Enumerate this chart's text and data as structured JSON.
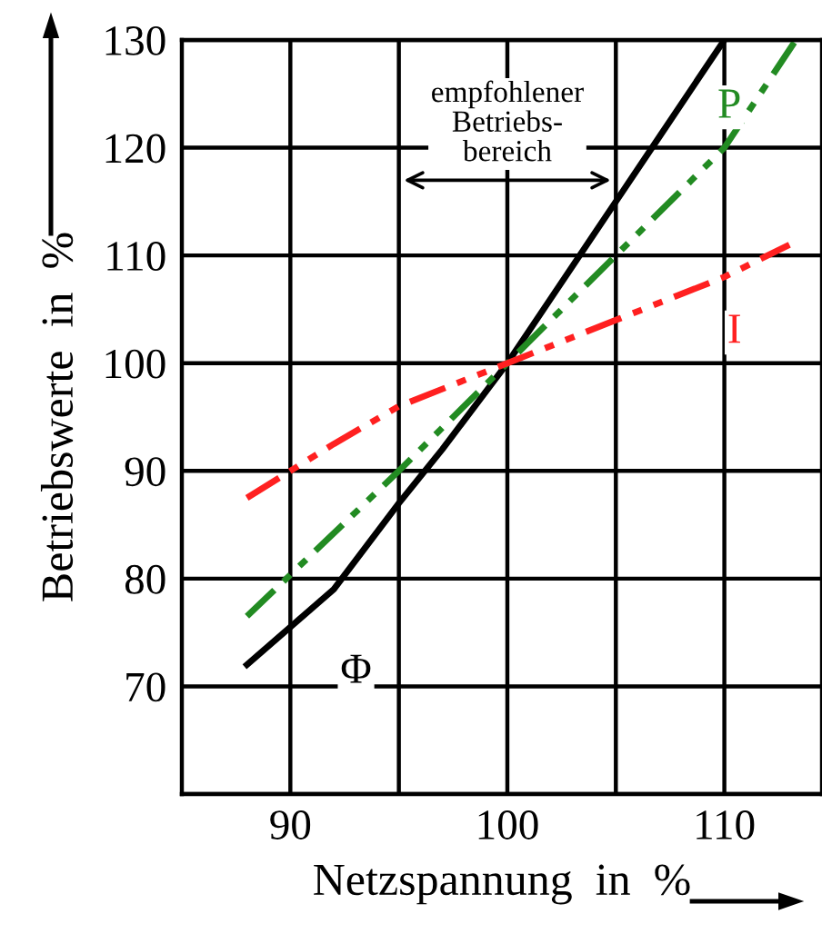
{
  "chart_data": {
    "type": "line",
    "xlabel": "Netzspannung  in  %",
    "ylabel": "Betriebswerte  in  %",
    "xlim": [
      85,
      114.5
    ],
    "ylim": [
      60,
      130
    ],
    "xticks": [
      90,
      {
        "value": 95,
        "label": null
      },
      100,
      {
        "value": 105,
        "label": null
      },
      110
    ],
    "yticks": [
      {
        "value": 60,
        "label": null
      },
      70,
      80,
      90,
      100,
      110,
      120,
      130
    ],
    "grid": true,
    "legend": false,
    "marker": "none",
    "annotations": [
      "empfohlener\nBetriebs-\nbereich"
    ],
    "series": [
      {
        "name": "Φ",
        "color": "#000000",
        "line_style": "solid",
        "x": [
          88,
          90,
          92,
          95,
          97,
          100,
          102,
          105,
          107,
          110
        ],
        "values": [
          72,
          75.5,
          79,
          87,
          92,
          100,
          106,
          115,
          121,
          130
        ]
      },
      {
        "name": "P",
        "color": "#228b22",
        "line_style": "dashdot",
        "x": [
          88,
          95,
          100,
          105,
          110,
          113.3
        ],
        "values": [
          76.5,
          90,
          100,
          110,
          120,
          130
        ]
      },
      {
        "name": "I",
        "color": "#ff2020",
        "line_style": "dashdot",
        "x": [
          88,
          92,
          95,
          100,
          105,
          110,
          113
        ],
        "values": [
          87.5,
          92.5,
          96,
          100,
          104,
          108,
          111
        ]
      }
    ]
  }
}
